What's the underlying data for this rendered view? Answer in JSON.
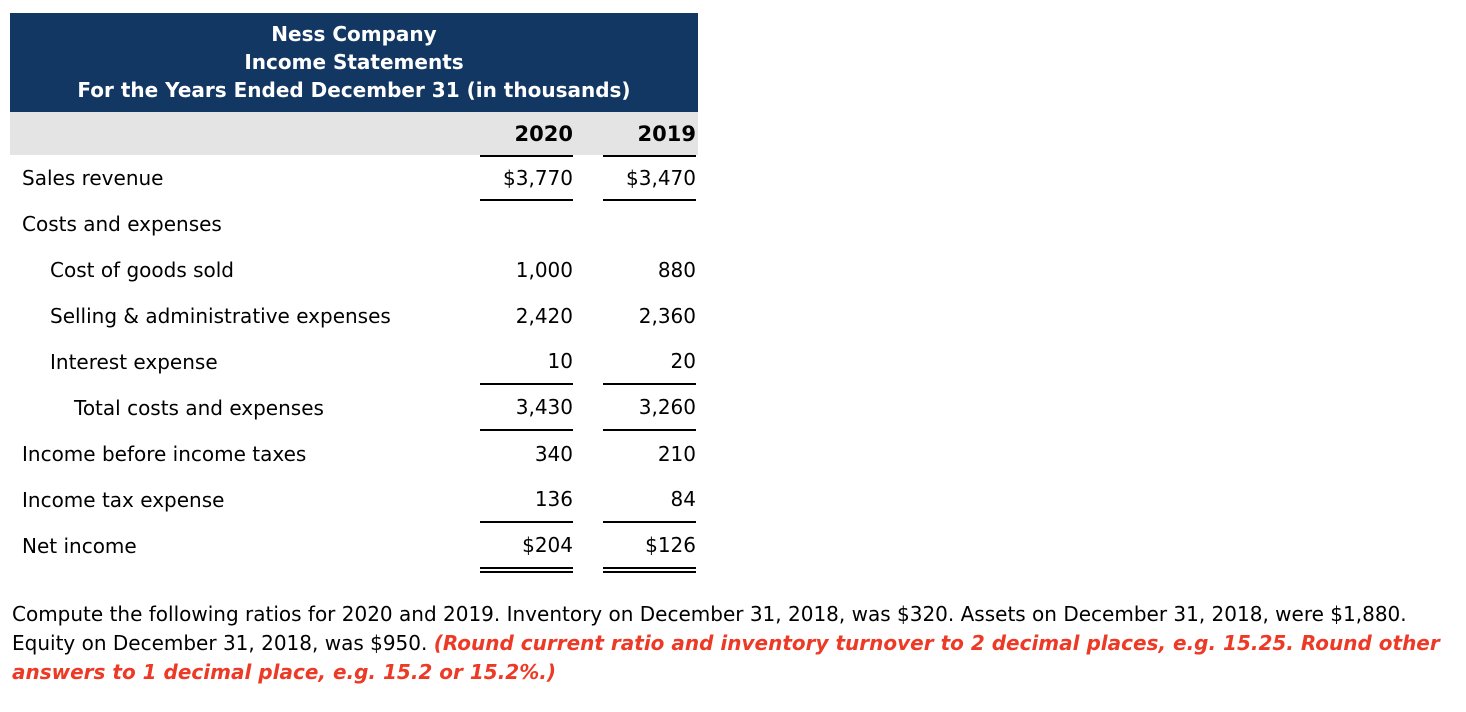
{
  "statement": {
    "title_lines": [
      "Ness Company",
      "Income Statements",
      "For the Years Ended December 31 (in thousands)"
    ],
    "columns": {
      "year1": "2020",
      "year2": "2019"
    },
    "rows": [
      {
        "label": "Sales revenue",
        "v2020": "$3,770",
        "v2019": "$3,470"
      },
      {
        "label": "Costs and expenses",
        "v2020": "",
        "v2019": ""
      },
      {
        "label": "Cost of goods sold",
        "v2020": "1,000",
        "v2019": "880"
      },
      {
        "label": "Selling & administrative expenses",
        "v2020": "2,420",
        "v2019": "2,360"
      },
      {
        "label": "Interest expense",
        "v2020": "10",
        "v2019": "20"
      },
      {
        "label": "Total costs and expenses",
        "v2020": "3,430",
        "v2019": "3,260"
      },
      {
        "label": "Income before income taxes",
        "v2020": "340",
        "v2019": "210"
      },
      {
        "label": "Income tax expense",
        "v2020": "136",
        "v2019": "84"
      },
      {
        "label": "Net income",
        "v2020": "$204",
        "v2019": "$126"
      }
    ]
  },
  "instructions": {
    "black_text": "Compute the following ratios for 2020 and 2019. Inventory on December 31, 2018, was $320. Assets on December 31, 2018, were $1,880. Equity on December 31, 2018, was $950. ",
    "red_text": "(Round current ratio and inventory turnover to 2 decimal places, e.g. 15.25. Round other answers to 1 decimal place, e.g. 15.2 or 15.2%.)"
  },
  "colors": {
    "header_bg": "#133763",
    "subheader_bg": "#E4E4E4",
    "emphasis_red": "#ED3A26"
  }
}
